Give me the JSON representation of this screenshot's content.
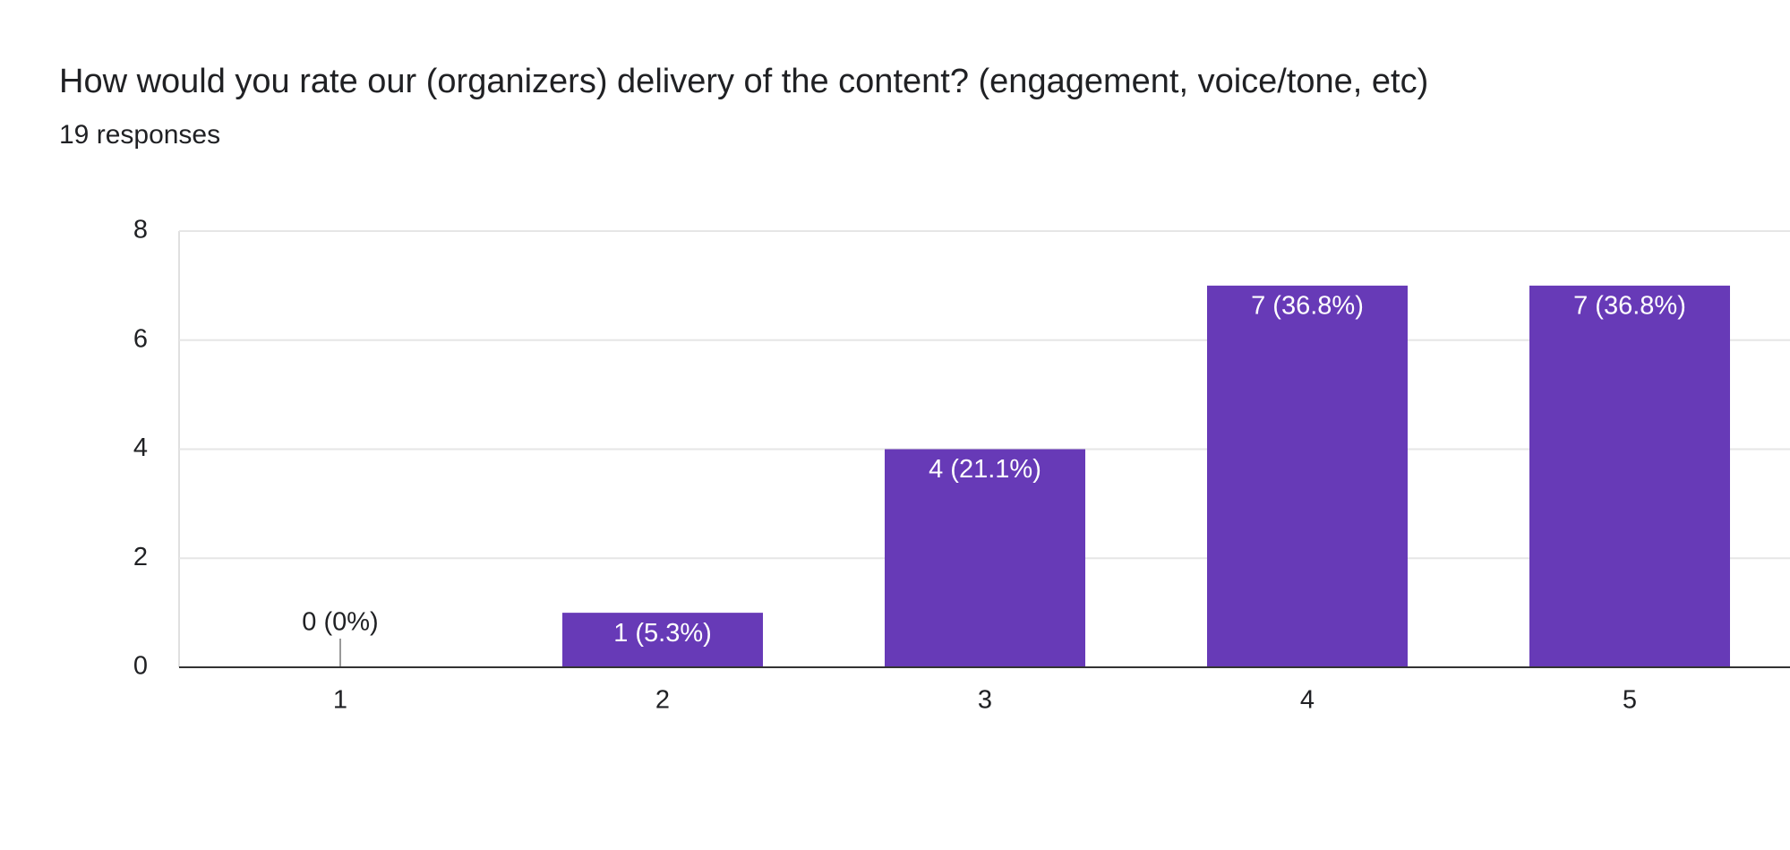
{
  "chart_data": {
    "type": "bar",
    "title": "How would you rate our (organizers) delivery of the content? (engagement, voice/tone, etc)",
    "subtitle": "19 responses",
    "categories": [
      "1",
      "2",
      "3",
      "4",
      "5"
    ],
    "values": [
      0,
      1,
      4,
      7,
      7
    ],
    "value_labels": [
      "0 (0%)",
      "1 (5.3%)",
      "4 (21.1%)",
      "7 (36.8%)",
      "7 (36.8%)"
    ],
    "color": "#673ab7",
    "ylim": [
      0,
      8
    ],
    "yticks": [
      0,
      2,
      4,
      6,
      8
    ],
    "grid": true
  }
}
